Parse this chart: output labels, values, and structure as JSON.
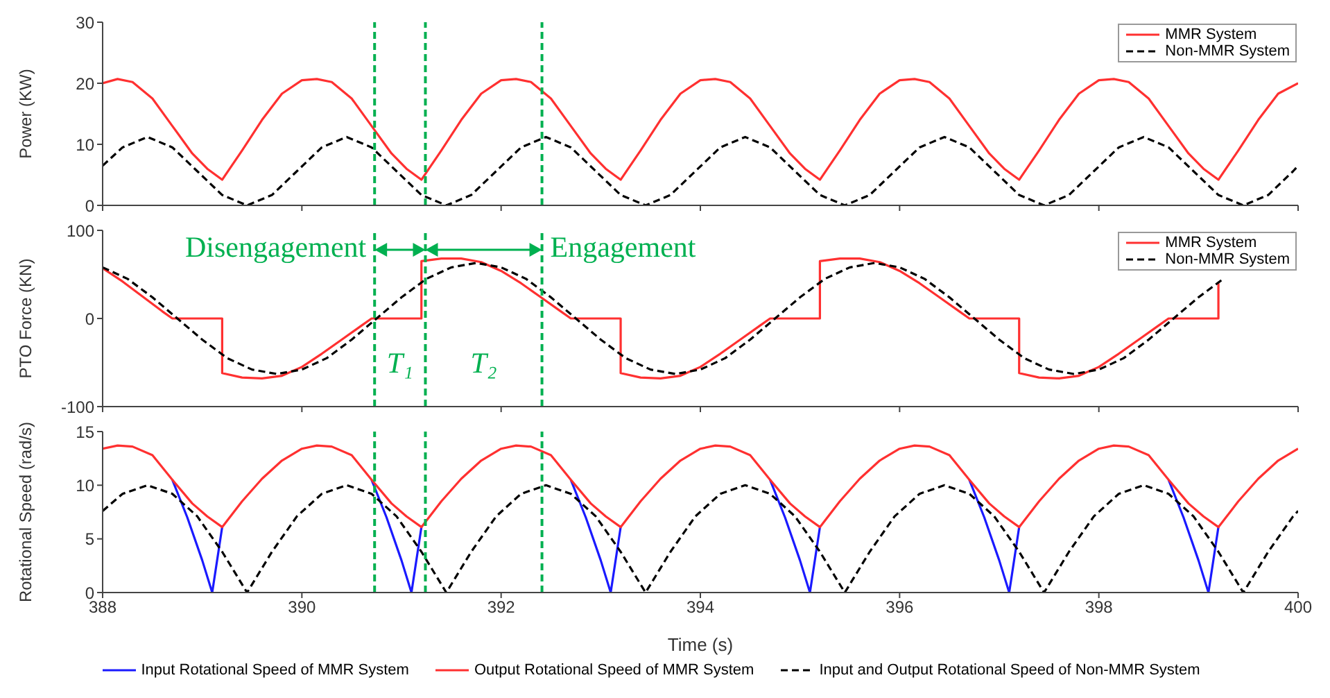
{
  "chart_data": [
    {
      "type": "line",
      "ylabel": "Power (KW)",
      "xlim": [
        388,
        400
      ],
      "xticks": [
        388,
        390,
        392,
        394,
        396,
        398,
        400
      ],
      "ylim": [
        0,
        30
      ],
      "yticks": [
        0,
        10,
        20,
        30
      ],
      "tick_labels": "y",
      "legend": "top right",
      "series": [
        {
          "name": "MMR System",
          "color": "#ff3030",
          "line_style": "solid",
          "x": [
            388,
            388.15,
            388.3,
            388.5,
            388.7,
            388.9,
            389.05,
            389.2,
            389.4,
            389.6,
            389.8,
            390,
            390.15,
            390.3,
            390.5,
            390.7,
            390.9,
            391.05,
            391.2,
            391.4,
            391.6,
            391.8,
            392,
            392.15,
            392.3,
            392.5,
            392.7,
            392.9,
            393.05,
            393.2,
            393.4,
            393.6,
            393.8,
            394,
            394.15,
            394.3,
            394.5,
            394.7,
            394.9,
            395.05,
            395.2,
            395.4,
            395.6,
            395.8,
            396,
            396.15,
            396.3,
            396.5,
            396.7,
            396.9,
            397.05,
            397.2,
            397.4,
            397.6,
            397.8,
            398,
            398.15,
            398.3,
            398.5,
            398.7,
            398.9,
            399.05,
            399.2,
            399.4,
            399.6,
            399.8,
            400
          ],
          "values": [
            20,
            20.7,
            20.2,
            17.5,
            13,
            8.5,
            6,
            4.2,
            9,
            14,
            18.3,
            20.5,
            20.7,
            20.2,
            17.5,
            13,
            8.5,
            6,
            4.2,
            9,
            14,
            18.3,
            20.5,
            20.7,
            20.2,
            17.5,
            13,
            8.5,
            6,
            4.2,
            9,
            14,
            18.3,
            20.5,
            20.7,
            20.2,
            17.5,
            13,
            8.5,
            6,
            4.2,
            9,
            14,
            18.3,
            20.5,
            20.7,
            20.2,
            17.5,
            13,
            8.5,
            6,
            4.2,
            9,
            14,
            18.3,
            20.5,
            20.7,
            20.2,
            17.5,
            13,
            8.5,
            6,
            4.2,
            9,
            14,
            18.3,
            20
          ]
        },
        {
          "name": "Non-MMR System",
          "color": "#000000",
          "line_style": "dashed",
          "x": [
            388,
            388.2,
            388.45,
            388.7,
            388.95,
            389.2,
            389.45,
            389.7,
            389.95,
            390.2,
            390.45,
            390.7,
            390.95,
            391.2,
            391.45,
            391.7,
            391.95,
            392.2,
            392.45,
            392.7,
            392.95,
            393.2,
            393.45,
            393.7,
            393.95,
            394.2,
            394.45,
            394.7,
            394.95,
            395.2,
            395.45,
            395.7,
            395.95,
            396.2,
            396.45,
            396.7,
            396.95,
            397.2,
            397.45,
            397.7,
            397.95,
            398.2,
            398.45,
            398.7,
            398.95,
            399.2,
            399.45,
            399.7,
            399.95,
            400
          ],
          "values": [
            6.5,
            9.5,
            11.2,
            9.5,
            5.6,
            1.7,
            0,
            1.7,
            5.6,
            9.5,
            11.2,
            9.5,
            5.6,
            1.7,
            0,
            1.7,
            5.6,
            9.5,
            11.2,
            9.5,
            5.6,
            1.7,
            0,
            1.7,
            5.6,
            9.5,
            11.2,
            9.5,
            5.6,
            1.7,
            0,
            1.7,
            5.6,
            9.5,
            11.2,
            9.5,
            5.6,
            1.7,
            0,
            1.7,
            5.6,
            9.5,
            11.2,
            9.5,
            5.6,
            1.7,
            0,
            1.7,
            5.6,
            6.5
          ]
        }
      ],
      "ref_lines": [
        {
          "axis": "x",
          "value": 390.73,
          "color": "#00b050",
          "line_style": "dashed"
        },
        {
          "axis": "x",
          "value": 391.24,
          "color": "#00b050",
          "line_style": "dashed"
        },
        {
          "axis": "x",
          "value": 392.41,
          "color": "#00b050",
          "line_style": "dashed"
        }
      ]
    },
    {
      "type": "line",
      "ylabel": "PTO Force (KN)",
      "xlim": [
        388,
        400
      ],
      "xticks": [
        388,
        390,
        392,
        394,
        396,
        398,
        400
      ],
      "ylim": [
        -100,
        100
      ],
      "yticks": [
        -100,
        0,
        100
      ],
      "tick_labels": "y",
      "legend": "top right",
      "series": [
        {
          "name": "MMR System",
          "color": "#ff3030",
          "line_style": "solid",
          "x": [
            388,
            388.2,
            388.4,
            388.6,
            388.7,
            389.2,
            389.2,
            389.4,
            389.6,
            389.8,
            390,
            390.2,
            390.4,
            390.6,
            390.7,
            391.2,
            391.2,
            391.4,
            391.6,
            391.8,
            392,
            392.2,
            392.4,
            392.6,
            392.7,
            393.2,
            393.2,
            393.4,
            393.6,
            393.8,
            394,
            394.2,
            394.4,
            394.6,
            394.7,
            395.2,
            395.2,
            395.4,
            395.6,
            395.8,
            396,
            396.2,
            396.4,
            396.6,
            396.7,
            397.2,
            397.2,
            397.4,
            397.6,
            397.8,
            398,
            398.2,
            398.4,
            398.6,
            398.7,
            399.2,
            399.2
          ],
          "values": [
            57,
            42,
            25,
            8,
            0,
            0,
            -62,
            -67,
            -68,
            -65,
            -55,
            -40,
            -24,
            -8,
            0,
            0,
            65,
            68,
            68,
            64,
            54,
            40,
            24,
            8,
            0,
            0,
            -62,
            -67,
            -68,
            -65,
            -55,
            -40,
            -24,
            -8,
            0,
            0,
            65,
            68,
            68,
            64,
            54,
            40,
            24,
            8,
            0,
            0,
            -62,
            -67,
            -68,
            -65,
            -55,
            -40,
            -24,
            -8,
            0,
            0,
            40
          ]
        },
        {
          "name": "Non-MMR System",
          "color": "#000000",
          "line_style": "dashed",
          "x": [
            388,
            388.25,
            388.5,
            388.75,
            389,
            389.25,
            389.5,
            389.75,
            390,
            390.25,
            390.5,
            390.75,
            391,
            391.25,
            391.5,
            391.75,
            392,
            392.25,
            392.5,
            392.75,
            393,
            393.25,
            393.5,
            393.75,
            394,
            394.25,
            394.5,
            394.75,
            395,
            395.25,
            395.5,
            395.75,
            396,
            396.25,
            396.5,
            396.75,
            397,
            397.25,
            397.5,
            397.75,
            398,
            398.25,
            398.5,
            398.75,
            399,
            399.25
          ],
          "values": [
            58,
            45,
            24,
            0,
            -24,
            -45,
            -58,
            -63,
            -58,
            -45,
            -24,
            0,
            24,
            45,
            58,
            63,
            58,
            45,
            24,
            0,
            -24,
            -45,
            -58,
            -63,
            -58,
            -45,
            -24,
            0,
            24,
            45,
            58,
            63,
            58,
            45,
            24,
            0,
            -24,
            -45,
            -58,
            -63,
            -58,
            -45,
            -24,
            0,
            24,
            45
          ]
        }
      ],
      "ref_lines": [
        {
          "axis": "x",
          "value": 390.73,
          "color": "#00b050",
          "line_style": "dashed"
        },
        {
          "axis": "x",
          "value": 391.24,
          "color": "#00b050",
          "line_style": "dashed"
        },
        {
          "axis": "x",
          "value": 392.41,
          "color": "#00b050",
          "line_style": "dashed"
        }
      ],
      "annotations": [
        "Disengagement",
        "Engagement",
        "T₁",
        "T₂"
      ]
    },
    {
      "type": "line",
      "ylabel": "Rotational Speed (rad/s)",
      "xlabel": "Time (s)",
      "xlim": [
        388,
        400
      ],
      "xticks": [
        388,
        390,
        392,
        394,
        396,
        398,
        400
      ],
      "ylim": [
        0,
        15
      ],
      "yticks": [
        0,
        5,
        10,
        15
      ],
      "legend": "bottom",
      "series": [
        {
          "name": "Input Rotational Speed of MMR System",
          "color": "#1a1aff",
          "line_style": "solid",
          "x": [
            388.7,
            388.85,
            389,
            389.1,
            389.2,
            389.3,
            390.7,
            390.85,
            391,
            391.1,
            391.2,
            391.3,
            392.7,
            392.85,
            393,
            393.1,
            393.2,
            393.3,
            394.7,
            394.85,
            395,
            395.1,
            395.2,
            395.3,
            396.7,
            396.85,
            397,
            397.1,
            397.2,
            397.3,
            398.7,
            398.85,
            399,
            399.1,
            399.2
          ],
          "values": [
            10.5,
            7,
            3,
            0,
            6.1,
            null,
            10.5,
            7,
            3,
            0,
            6.1,
            null,
            10.5,
            7,
            3,
            0,
            6.1,
            null,
            10.5,
            7,
            3,
            0,
            6.1,
            null,
            10.5,
            7,
            3,
            0,
            6.1,
            null,
            10.5,
            7,
            3,
            0,
            6.1
          ]
        },
        {
          "name": "Output Rotational Speed of MMR System",
          "color": "#ff3030",
          "line_style": "solid",
          "x": [
            388,
            388.15,
            388.3,
            388.5,
            388.7,
            388.9,
            389.05,
            389.2,
            389.4,
            389.6,
            389.8,
            390,
            390.15,
            390.3,
            390.5,
            390.7,
            390.9,
            391.05,
            391.2,
            391.4,
            391.6,
            391.8,
            392,
            392.15,
            392.3,
            392.5,
            392.7,
            392.9,
            393.05,
            393.2,
            393.4,
            393.6,
            393.8,
            394,
            394.15,
            394.3,
            394.5,
            394.7,
            394.9,
            395.05,
            395.2,
            395.4,
            395.6,
            395.8,
            396,
            396.15,
            396.3,
            396.5,
            396.7,
            396.9,
            397.05,
            397.2,
            397.4,
            397.6,
            397.8,
            398,
            398.15,
            398.3,
            398.5,
            398.7,
            398.9,
            399.05,
            399.2,
            399.4,
            399.6,
            399.8,
            400
          ],
          "values": [
            13.4,
            13.7,
            13.6,
            12.8,
            10.5,
            8.3,
            7.1,
            6.1,
            8.5,
            10.6,
            12.3,
            13.4,
            13.7,
            13.6,
            12.8,
            10.5,
            8.3,
            7.1,
            6.1,
            8.5,
            10.6,
            12.3,
            13.4,
            13.7,
            13.6,
            12.8,
            10.5,
            8.3,
            7.1,
            6.1,
            8.5,
            10.6,
            12.3,
            13.4,
            13.7,
            13.6,
            12.8,
            10.5,
            8.3,
            7.1,
            6.1,
            8.5,
            10.6,
            12.3,
            13.4,
            13.7,
            13.6,
            12.8,
            10.5,
            8.3,
            7.1,
            6.1,
            8.5,
            10.6,
            12.3,
            13.4,
            13.7,
            13.6,
            12.8,
            10.5,
            8.3,
            7.1,
            6.1,
            8.5,
            10.6,
            12.3,
            13.4
          ]
        },
        {
          "name": "Input and Output Rotational Speed of Non-MMR System",
          "color": "#000000",
          "line_style": "dashed",
          "x": [
            388,
            388.2,
            388.45,
            388.7,
            388.95,
            389.2,
            389.45,
            389.7,
            389.95,
            390.2,
            390.45,
            390.7,
            390.95,
            391.2,
            391.45,
            391.7,
            391.95,
            392.2,
            392.45,
            392.7,
            392.95,
            393.2,
            393.45,
            393.7,
            393.95,
            394.2,
            394.45,
            394.7,
            394.95,
            395.2,
            395.45,
            395.7,
            395.95,
            396.2,
            396.45,
            396.7,
            396.95,
            397.2,
            397.45,
            397.7,
            397.95,
            398.2,
            398.45,
            398.7,
            398.95,
            399.2,
            399.45,
            399.7,
            399.95,
            400
          ],
          "values": [
            7.6,
            9.2,
            10,
            9.2,
            7.1,
            3.8,
            0,
            3.8,
            7.1,
            9.2,
            10,
            9.2,
            7.1,
            3.8,
            0,
            3.8,
            7.1,
            9.2,
            10,
            9.2,
            7.1,
            3.8,
            0,
            3.8,
            7.1,
            9.2,
            10,
            9.2,
            7.1,
            3.8,
            0,
            3.8,
            7.1,
            9.2,
            10,
            9.2,
            7.1,
            3.8,
            0,
            3.8,
            7.1,
            9.2,
            10,
            9.2,
            7.1,
            3.8,
            0,
            3.8,
            7.1,
            7.6
          ]
        }
      ],
      "ref_lines": [
        {
          "axis": "x",
          "value": 390.73,
          "color": "#00b050",
          "line_style": "dashed"
        },
        {
          "axis": "x",
          "value": 391.24,
          "color": "#00b050",
          "line_style": "dashed"
        },
        {
          "axis": "x",
          "value": 392.41,
          "color": "#00b050",
          "line_style": "dashed"
        }
      ]
    }
  ]
}
